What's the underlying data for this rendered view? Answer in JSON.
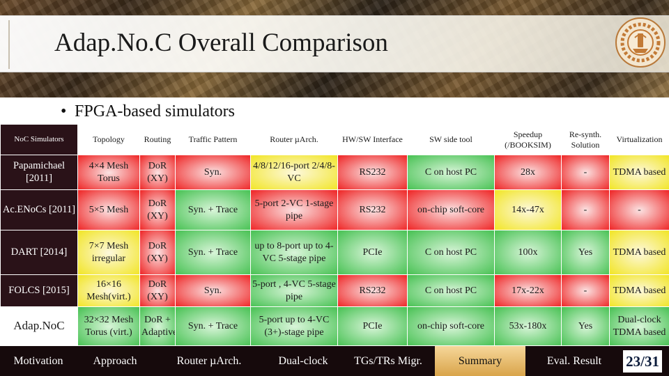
{
  "slide": {
    "title": "Adap.No.C Overall Comparison",
    "bullet": "FPGA-based simulators",
    "bullet_marker": "•",
    "page_number": "23/31"
  },
  "table": {
    "headers": [
      "NoC Simulators",
      "Topology",
      "Routing",
      "Traffic Pattern",
      "Router µArch.",
      "HW/SW Interface",
      "SW side tool",
      "Speedup (/BOOKSIM)",
      "Re-synth. Solution",
      "Virtualization"
    ],
    "rows": [
      {
        "name": "Papamichael [2011]",
        "topology": "4×4 Mesh Torus",
        "routing": "DoR (XY)",
        "traffic": "Syn.",
        "router": "4/8/12/16-port 2/4/8-VC",
        "interface": "RS232",
        "sw_tool": "C on host PC",
        "speedup": "28x",
        "resynth": "-",
        "virtualization": "TDMA based"
      },
      {
        "name": "Ac.ENoCs [2011]",
        "topology": "5×5 Mesh",
        "routing": "DoR (XY)",
        "traffic": "Syn. + Trace",
        "router": "5-port 2-VC 1-stage pipe",
        "interface": "RS232",
        "sw_tool": "on-chip soft-core",
        "speedup": "14x-47x",
        "resynth": "-",
        "virtualization": "-"
      },
      {
        "name": "DART [2014]",
        "topology": "7×7 Mesh irregular",
        "routing": "DoR (XY)",
        "traffic": "Syn. + Trace",
        "router": "up to 8-port up to 4-VC 5-stage pipe",
        "interface": "PCIe",
        "sw_tool": "C on host PC",
        "speedup": "100x",
        "resynth": "Yes",
        "virtualization": "TDMA based"
      },
      {
        "name": "FOLCS [2015]",
        "topology": "16×16 Mesh(virt.)",
        "routing": "DoR (XY)",
        "traffic": "Syn.",
        "router": "5-port , 4-VC 5-stage pipe",
        "interface": "RS232",
        "sw_tool": "C on host PC",
        "speedup": "17x-22x",
        "resynth": "-",
        "virtualization": "TDMA based"
      },
      {
        "name": "Adap.NoC",
        "topology": "32×32 Mesh Torus (virt.)",
        "routing": "DoR + Adaptive",
        "traffic": "Syn. + Trace",
        "router": "5-port up to 4-VC (3+)-stage pipe",
        "interface": "PCIe",
        "sw_tool": "on-chip soft-core",
        "speedup": "53x-180x",
        "resynth": "Yes",
        "virtualization": "Dual-clock TDMA based"
      }
    ]
  },
  "nav": {
    "items": [
      "Motivation",
      "Approach",
      "Router µArch.",
      "Dual-clock",
      "TGs/TRs Migr.",
      "Summary",
      "Eval. Result"
    ],
    "active": "Summary"
  },
  "colors": {
    "good": "#4fc45a",
    "bad": "#ef2f2f",
    "medium": "#f2e62f",
    "row_header_bg": "#2a1218",
    "nav_bg": "#160a0c",
    "nav_active": "#d9a44a"
  },
  "icons": {
    "logo": "university-seal-icon"
  }
}
